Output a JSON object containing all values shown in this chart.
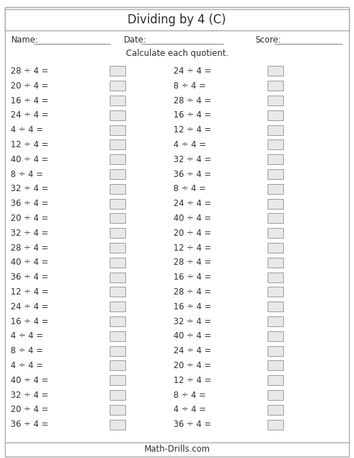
{
  "title": "Dividing by 4 (C)",
  "name_label": "Name:",
  "date_label": "Date:",
  "score_label": "Score:",
  "instruction": "Calculate each quotient.",
  "footer": "Math-Drills.com",
  "left_column": [
    "28 ÷ 4 =",
    "20 ÷ 4 =",
    "16 ÷ 4 =",
    "24 ÷ 4 =",
    "4 ÷ 4 =",
    "12 ÷ 4 =",
    "40 ÷ 4 =",
    "8 ÷ 4 =",
    "32 ÷ 4 =",
    "36 ÷ 4 =",
    "20 ÷ 4 =",
    "32 ÷ 4 =",
    "28 ÷ 4 =",
    "40 ÷ 4 =",
    "36 ÷ 4 =",
    "12 ÷ 4 =",
    "24 ÷ 4 =",
    "16 ÷ 4 =",
    "4 ÷ 4 =",
    "8 ÷ 4 =",
    "4 ÷ 4 =",
    "40 ÷ 4 =",
    "32 ÷ 4 =",
    "20 ÷ 4 =",
    "36 ÷ 4 ="
  ],
  "right_column": [
    "24 ÷ 4 =",
    "8 ÷ 4 =",
    "28 ÷ 4 =",
    "16 ÷ 4 =",
    "12 ÷ 4 =",
    "4 ÷ 4 =",
    "32 ÷ 4 =",
    "36 ÷ 4 =",
    "8 ÷ 4 =",
    "24 ÷ 4 =",
    "40 ÷ 4 =",
    "20 ÷ 4 =",
    "12 ÷ 4 =",
    "28 ÷ 4 =",
    "16 ÷ 4 =",
    "28 ÷ 4 =",
    "16 ÷ 4 =",
    "32 ÷ 4 =",
    "40 ÷ 4 =",
    "24 ÷ 4 =",
    "20 ÷ 4 =",
    "12 ÷ 4 =",
    "8 ÷ 4 =",
    "4 ÷ 4 =",
    "36 ÷ 4 ="
  ],
  "bg_color": "#ffffff",
  "text_color": "#2d2d2d",
  "box_facecolor": "#e8e8e8",
  "border_color": "#888888",
  "font_size": 8.5,
  "title_font_size": 12,
  "header_font_size": 8.5,
  "footer_font_size": 8.5
}
